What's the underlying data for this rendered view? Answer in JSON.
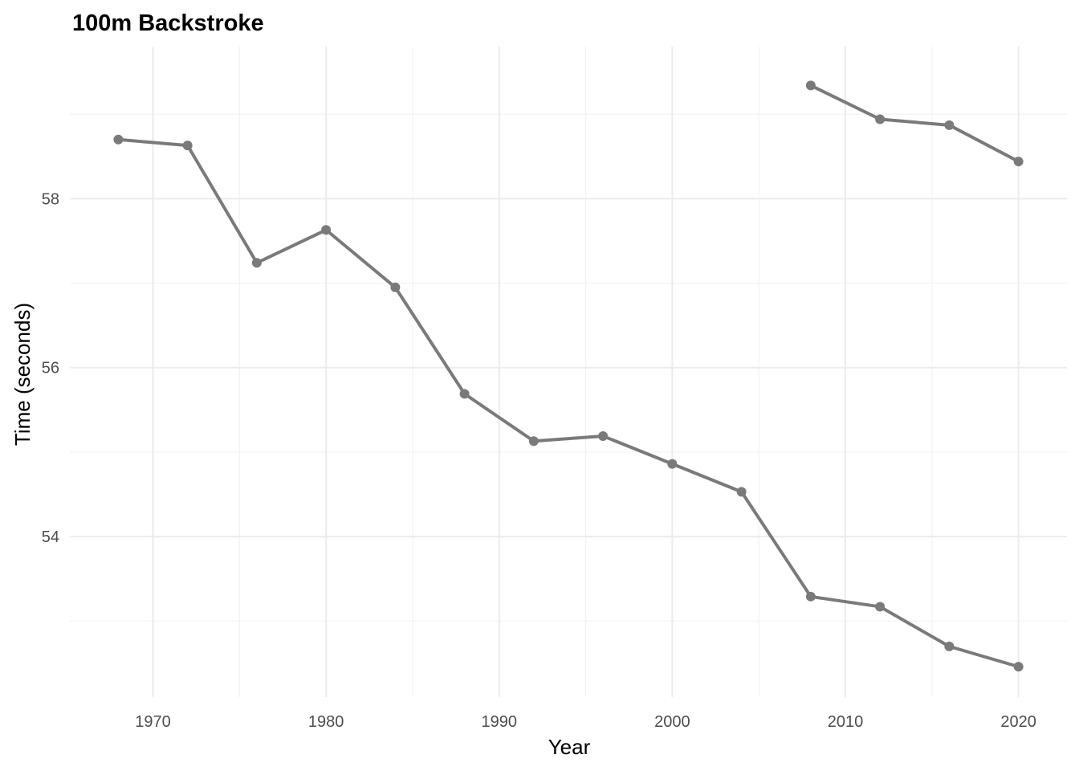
{
  "chart_data": {
    "type": "line",
    "title": "100m Backstroke",
    "xlabel": "Year",
    "ylabel": "Time (seconds)",
    "xlim": [
      1965.2,
      2022.8
    ],
    "ylim": [
      52.1,
      59.8
    ],
    "x_ticks": [
      1970,
      1980,
      1990,
      2000,
      2010,
      2020
    ],
    "x_minor_ticks": [
      1975,
      1985,
      1995,
      2005,
      2015
    ],
    "y_ticks": [
      54,
      56,
      58
    ],
    "y_minor_ticks": [
      53,
      55,
      57,
      59
    ],
    "grid": true,
    "legend": "none",
    "line_color": "#7a7a7a",
    "series": [
      {
        "x": [
          1968,
          1972,
          1976,
          1980,
          1984,
          1988,
          1992,
          1996,
          2000,
          2004,
          2008,
          2012,
          2016,
          2020
        ],
        "values": [
          58.7,
          58.63,
          57.24,
          57.63,
          56.95,
          55.69,
          55.13,
          55.19,
          54.86,
          54.53,
          53.29,
          53.17,
          52.7,
          52.46
        ]
      },
      {
        "x": [
          2008,
          2012,
          2016,
          2020
        ],
        "values": [
          59.34,
          58.94,
          58.87,
          58.44
        ]
      }
    ]
  }
}
